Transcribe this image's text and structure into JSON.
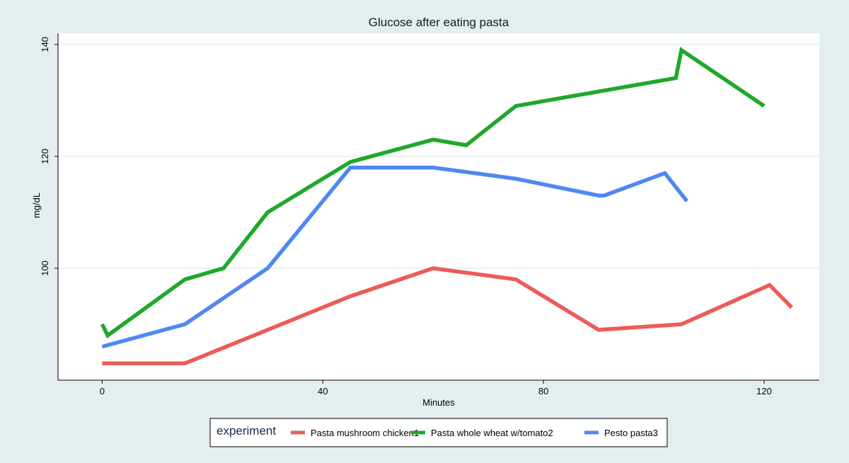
{
  "chart_data": {
    "type": "line",
    "title": "Glucose after eating pasta",
    "xlabel": "Minutes",
    "ylabel": "mg/dL",
    "xlim": [
      -8,
      130
    ],
    "ylim": [
      80,
      142
    ],
    "xticks": [
      0,
      40,
      80,
      120
    ],
    "yticks": [
      100,
      120,
      140
    ],
    "grid": "horizontal",
    "legend_title": "experiment",
    "legend_position": "bottom",
    "series": [
      {
        "name": "Pasta mushroom chicken1",
        "color": "#ec5b58",
        "x": [
          0,
          15,
          30,
          45,
          60,
          75,
          90,
          105,
          121,
          125
        ],
        "y": [
          83,
          83,
          89,
          95,
          100,
          98,
          89,
          90,
          97,
          93
        ]
      },
      {
        "name": "Pasta whole wheat w/tomato2",
        "color": "#1fa82b",
        "x": [
          0,
          1,
          15,
          22,
          30,
          45,
          60,
          66,
          75,
          104,
          105,
          120
        ],
        "y": [
          90,
          88,
          98,
          100,
          110,
          119,
          123,
          122,
          129,
          134,
          139,
          129
        ]
      },
      {
        "name": "Pesto pasta3",
        "color": "#4f88f2",
        "x": [
          0,
          15,
          30,
          45,
          60,
          75,
          90,
          91,
          102,
          106
        ],
        "y": [
          86,
          90,
          100,
          118,
          118,
          116,
          113,
          113,
          117,
          112
        ]
      }
    ]
  }
}
